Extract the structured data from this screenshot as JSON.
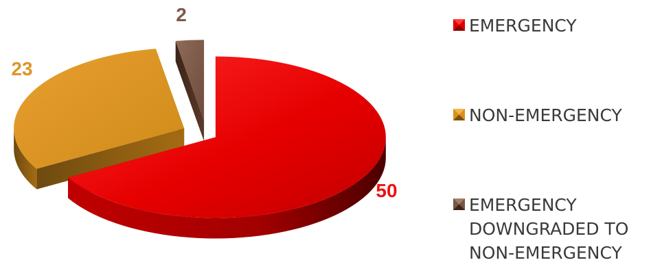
{
  "chart_data": {
    "type": "pie",
    "categories": [
      "EMERGENCY",
      "NON-EMERGENCY",
      "EMERGENCY\nDOWNGRADED TO\nNON-EMERGENCY"
    ],
    "values": [
      50,
      23,
      2
    ],
    "data_labels": [
      "50",
      "23",
      "2"
    ],
    "colors": [
      "#e00000",
      "#d9901c",
      "#7a5645"
    ],
    "label_colors": [
      "#ee1111",
      "#dc9626",
      "#7d5848"
    ],
    "three_d": true,
    "exploded": true,
    "legend_position": "right"
  }
}
